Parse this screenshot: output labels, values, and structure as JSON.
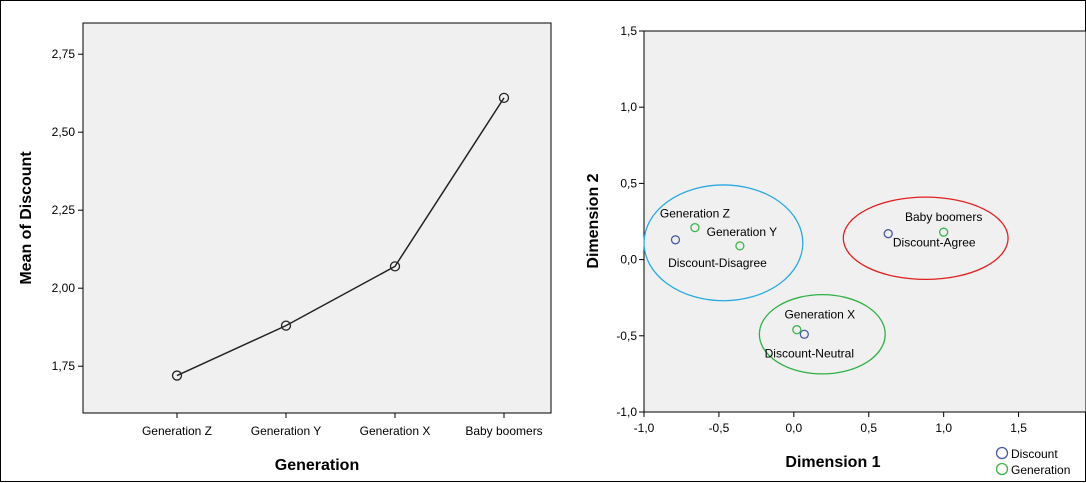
{
  "chart_data": [
    {
      "type": "line",
      "xlabel": "Generation",
      "ylabel": "Mean of Discount",
      "categories": [
        "Generation Z",
        "Generation Y",
        "Generation X",
        "Baby boomers"
      ],
      "values": [
        1.72,
        1.88,
        2.07,
        2.61
      ],
      "ylim": [
        1.6,
        2.85
      ],
      "yticks": [
        "1,75",
        "2,00",
        "2,25",
        "2,50",
        "2,75"
      ],
      "ytick_values": [
        1.75,
        2.0,
        2.25,
        2.5,
        2.75
      ],
      "grid": false,
      "plot_background": "#f0f0f0",
      "line_color": "#222222"
    },
    {
      "type": "scatter",
      "xlabel": "Dimension 1",
      "ylabel": "Dimension 2",
      "xlim": [
        -1.0,
        1.95
      ],
      "ylim": [
        -1.0,
        1.5
      ],
      "xticks": [
        "-1,0",
        "-0,5",
        "0,0",
        "0,5",
        "1,0",
        "1,5"
      ],
      "xtick_values": [
        -1.0,
        -0.5,
        0.0,
        0.5,
        1.0,
        1.5
      ],
      "yticks": [
        "-1,0",
        "-0,5",
        "0,0",
        "0,5",
        "1,0",
        "1,5"
      ],
      "ytick_values": [
        -1.0,
        -0.5,
        0.0,
        0.5,
        1.0,
        1.5
      ],
      "grid": false,
      "legend_position": "bottom-right",
      "series": [
        {
          "name": "Discount",
          "color": "#4a5aa8",
          "points": [
            {
              "label": "Discount-Disagree",
              "x": -0.79,
              "y": 0.13
            },
            {
              "label": "Discount-Agree",
              "x": 0.63,
              "y": 0.17
            },
            {
              "label": "Discount-Neutral",
              "x": 0.07,
              "y": -0.49
            }
          ]
        },
        {
          "name": "Generation",
          "color": "#3cb54a",
          "points": [
            {
              "label": "Generation Z",
              "x": -0.66,
              "y": 0.21
            },
            {
              "label": "Generation Y",
              "x": -0.36,
              "y": 0.09
            },
            {
              "label": "Baby boomers",
              "x": 1.0,
              "y": 0.18
            },
            {
              "label": "Generation X",
              "x": 0.02,
              "y": -0.46
            }
          ]
        }
      ],
      "ellipses": [
        {
          "cx": -0.47,
          "cy": 0.11,
          "rx": 0.53,
          "ry": 0.38,
          "color": "#29a9e0"
        },
        {
          "cx": 0.88,
          "cy": 0.14,
          "rx": 0.55,
          "ry": 0.27,
          "color": "#e02020"
        },
        {
          "cx": 0.19,
          "cy": -0.49,
          "rx": 0.42,
          "ry": 0.26,
          "color": "#2fb044"
        }
      ]
    }
  ]
}
